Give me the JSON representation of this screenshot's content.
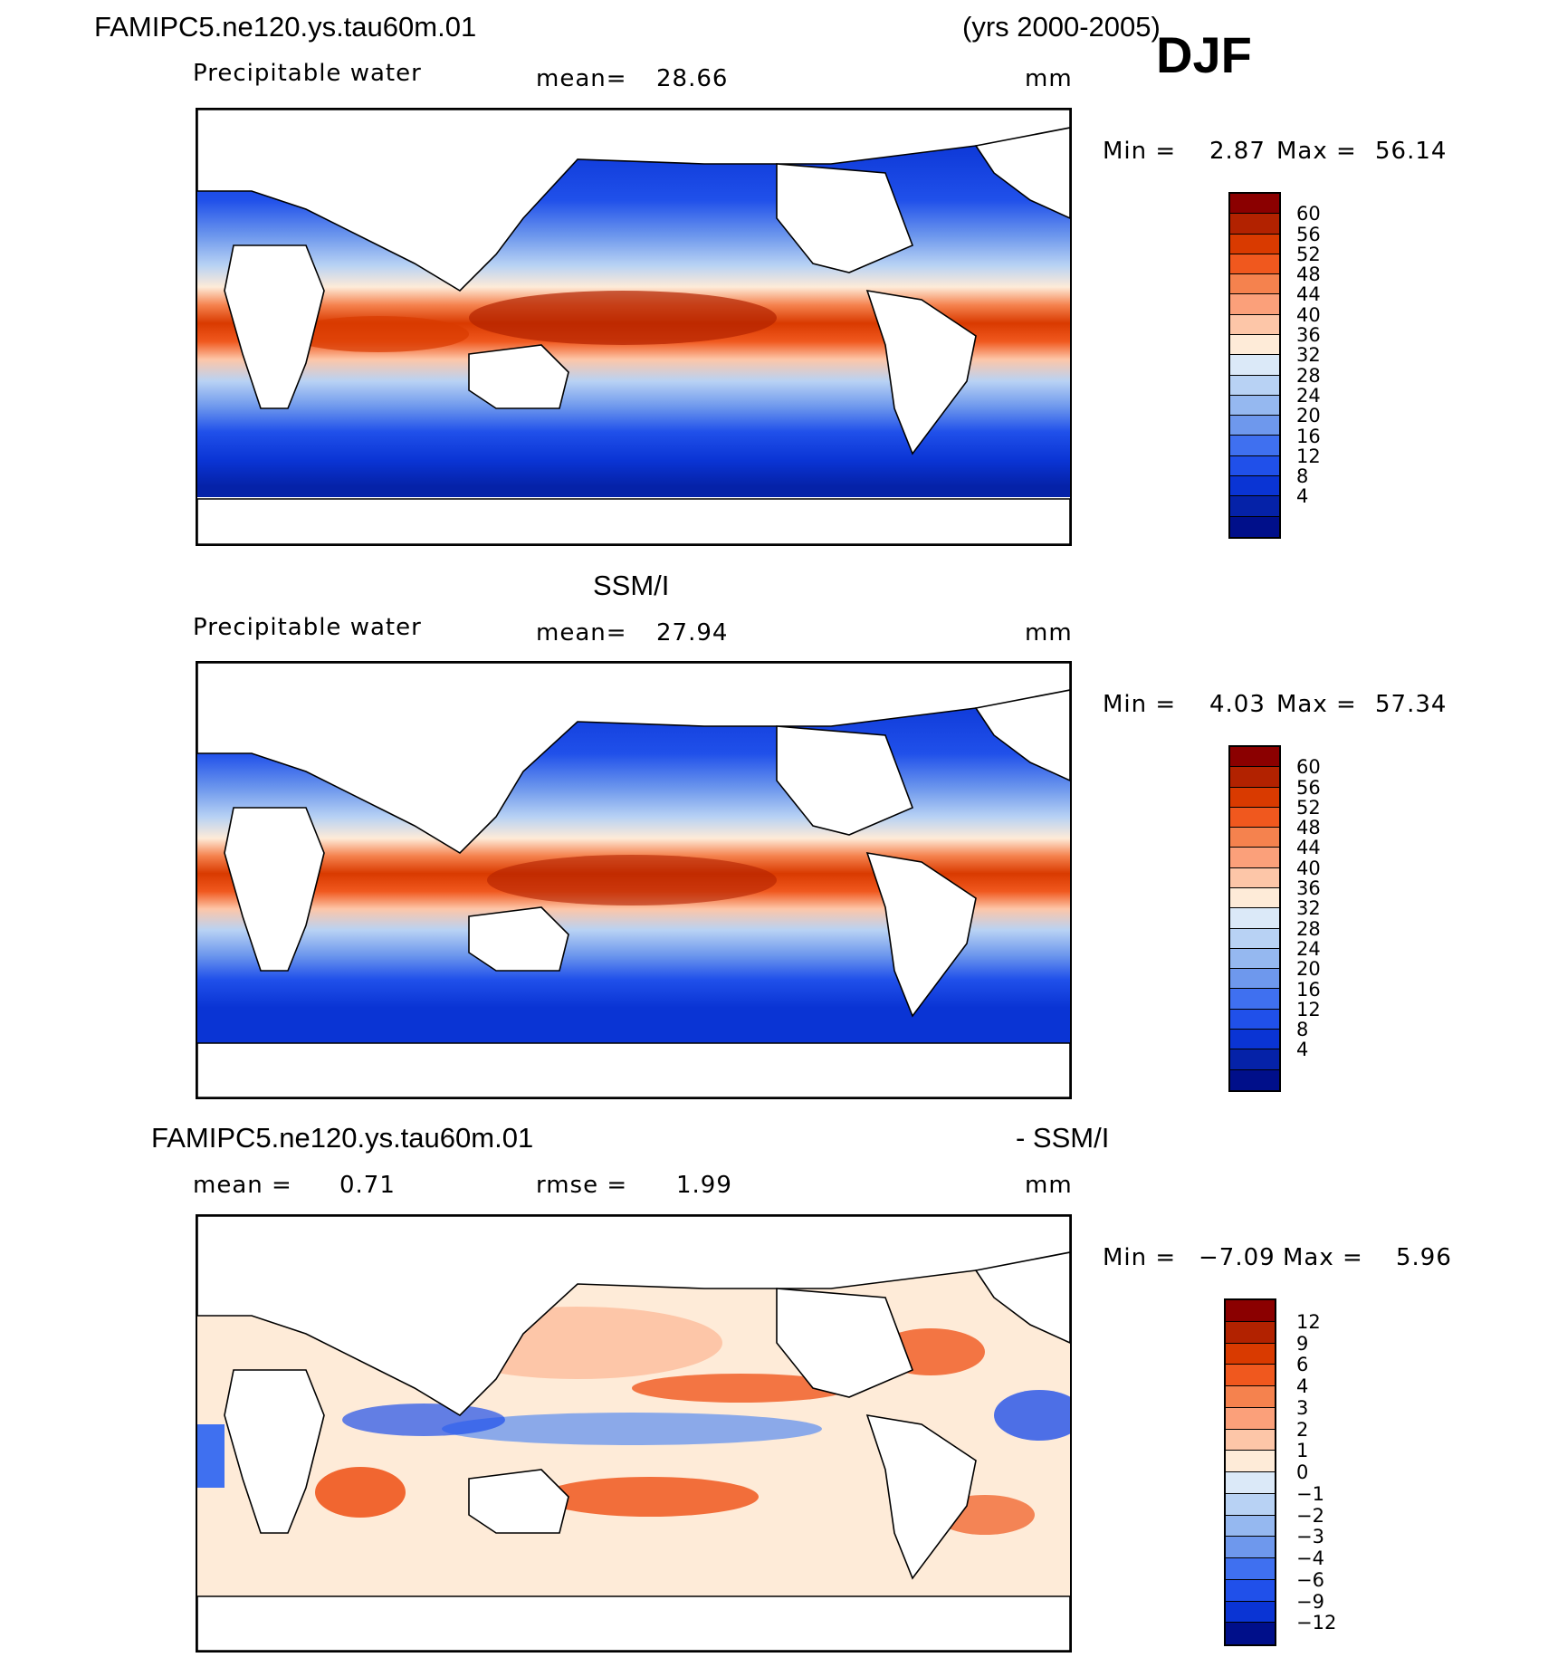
{
  "figure": {
    "case_name": "FAMIPC5.ne120.ys.tau60m.01",
    "years": "(yrs 2000-2005)",
    "season": "DJF"
  },
  "panels": [
    {
      "id": "model",
      "variable": "Precipitable water",
      "mean_label": "mean=",
      "mean_value": "28.66",
      "units": "mm",
      "min_label": "Min =",
      "min_value": "2.87",
      "max_label": "Max =",
      "max_value": "56.14"
    },
    {
      "id": "obs",
      "title": "SSM/I",
      "variable": "Precipitable water",
      "mean_label": "mean=",
      "mean_value": "27.94",
      "units": "mm",
      "min_label": "Min =",
      "min_value": "4.03",
      "max_label": "Max =",
      "max_value": "57.34"
    },
    {
      "id": "diff",
      "title_left": "FAMIPC5.ne120.ys.tau60m.01",
      "title_right": "- SSM/I",
      "mean_label": "mean =",
      "mean_value": "0.71",
      "rmse_label": "rmse =",
      "rmse_value": "1.99",
      "units": "mm",
      "min_label": "Min =",
      "min_value": "−7.09",
      "max_label": "Max =",
      "max_value": "5.96"
    }
  ],
  "colorbars": {
    "absolute": {
      "colors": [
        "#8b0000",
        "#b22200",
        "#d93a00",
        "#f0581e",
        "#f5824e",
        "#fba07a",
        "#fdc6a8",
        "#feebd8",
        "#dbe9f8",
        "#b8d2f4",
        "#95b8f0",
        "#6e98ed",
        "#3f70f0",
        "#2050ea",
        "#0a34d4",
        "#0522a8",
        "#000f8a"
      ],
      "labels": [
        "60",
        "56",
        "52",
        "48",
        "44",
        "40",
        "36",
        "32",
        "28",
        "24",
        "20",
        "16",
        "12",
        "8",
        "4"
      ]
    },
    "difference": {
      "colors": [
        "#8b0000",
        "#b22200",
        "#d93a00",
        "#f0581e",
        "#f5824e",
        "#fba07a",
        "#fdc6a8",
        "#feebd8",
        "#dbe9f8",
        "#b8d2f4",
        "#95b8f0",
        "#6e98ed",
        "#3f70f0",
        "#2050ea",
        "#0a34d4",
        "#000f8a"
      ],
      "labels": [
        "12",
        "9",
        "6",
        "4",
        "3",
        "2",
        "1",
        "0",
        "−1",
        "−2",
        "−3",
        "−4",
        "−6",
        "−9",
        "−12"
      ]
    }
  },
  "chart_data": [
    {
      "type": "heatmap",
      "panel": "model",
      "title": "FAMIPC5.ne120.ys.tau60m.01",
      "subtitle": "Precipitable water",
      "units": "mm",
      "mean": 28.66,
      "min": 2.87,
      "max": 56.14,
      "contour_levels": [
        4,
        8,
        12,
        16,
        20,
        24,
        28,
        32,
        36,
        40,
        44,
        48,
        52,
        56,
        60
      ]
    },
    {
      "type": "heatmap",
      "panel": "obs",
      "title": "SSM/I",
      "subtitle": "Precipitable water",
      "units": "mm",
      "mean": 27.94,
      "min": 4.03,
      "max": 57.34,
      "contour_levels": [
        4,
        8,
        12,
        16,
        20,
        24,
        28,
        32,
        36,
        40,
        44,
        48,
        52,
        56,
        60
      ]
    },
    {
      "type": "heatmap",
      "panel": "diff",
      "title": "FAMIPC5.ne120.ys.tau60m.01 - SSM/I",
      "units": "mm",
      "mean": 0.71,
      "rmse": 1.99,
      "min": -7.09,
      "max": 5.96,
      "contour_levels": [
        -12,
        -9,
        -6,
        -4,
        -3,
        -2,
        -1,
        0,
        1,
        2,
        3,
        4,
        6,
        9,
        12
      ]
    }
  ]
}
